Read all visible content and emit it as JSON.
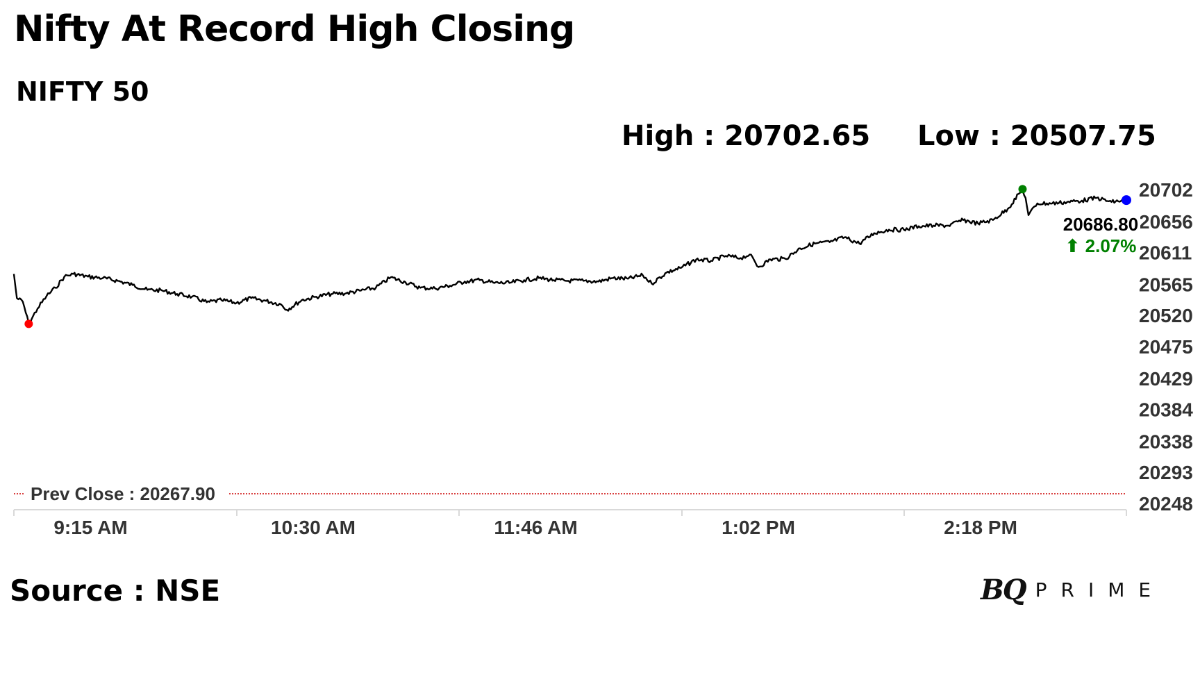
{
  "header": {
    "title": "Nifty At Record High Closing",
    "subtitle": "NIFTY 50",
    "high_label": "High : 20702.65",
    "low_label": "Low : 20507.75"
  },
  "footer": {
    "source": "Source : NSE",
    "logo_mark": "BQ",
    "logo_word": "PRIME"
  },
  "colors": {
    "line": "#000000",
    "high_marker": "#008000",
    "low_marker": "#ff0000",
    "last_marker": "#0000ff",
    "change_up": "#008000",
    "prev_close_line": "#cc0000",
    "axis_text": "#333333"
  },
  "chart_data": {
    "type": "line",
    "title": "NIFTY 50",
    "y_ticks": [
      20248,
      20293,
      20338,
      20384,
      20429,
      20475,
      20520,
      20565,
      20611,
      20656,
      20702
    ],
    "ylim": [
      20248,
      20702
    ],
    "x_ticks": [
      "9:15 AM",
      "10:30 AM",
      "11:46 AM",
      "1:02 PM",
      "2:18 PM"
    ],
    "y_axis_position": "right",
    "grid": false,
    "prev_close": {
      "label": "Prev Close : 20267.90",
      "value": 20267.9
    },
    "last_value_label": "20686.80",
    "change_label": "2.07%",
    "change_arrow": "⬆",
    "high": {
      "time": "2:55 PM",
      "value": 20702.65
    },
    "low": {
      "time": "9:20 AM",
      "value": 20507.75
    },
    "last": {
      "time": "3:30 PM",
      "value": 20686.8
    },
    "series": [
      {
        "points": [
          [
            "9:15 AM",
            20580
          ],
          [
            "9:16 AM",
            20545
          ],
          [
            "9:18 AM",
            20540
          ],
          [
            "9:20 AM",
            20508
          ],
          [
            "9:23 AM",
            20530
          ],
          [
            "9:26 AM",
            20548
          ],
          [
            "9:29 AM",
            20560
          ],
          [
            "9:32 AM",
            20576
          ],
          [
            "9:35 AM",
            20580
          ],
          [
            "9:40 AM",
            20576
          ],
          [
            "9:45 AM",
            20574
          ],
          [
            "9:50 AM",
            20570
          ],
          [
            "9:55 AM",
            20564
          ],
          [
            "10:00 AM",
            20557
          ],
          [
            "10:05 AM",
            20556
          ],
          [
            "10:10 AM",
            20551
          ],
          [
            "10:15 AM",
            20547
          ],
          [
            "10:20 AM",
            20539
          ],
          [
            "10:25 AM",
            20542
          ],
          [
            "10:30 AM",
            20538
          ],
          [
            "10:35 AM",
            20545
          ],
          [
            "10:40 AM",
            20541
          ],
          [
            "10:45 AM",
            20536
          ],
          [
            "10:47 AM",
            20528
          ],
          [
            "10:52 AM",
            20542
          ],
          [
            "10:57 AM",
            20547
          ],
          [
            "11:02 AM",
            20551
          ],
          [
            "11:07 AM",
            20552
          ],
          [
            "11:12 AM",
            20556
          ],
          [
            "11:17 AM",
            20560
          ],
          [
            "11:22 AM",
            20575
          ],
          [
            "11:27 AM",
            20568
          ],
          [
            "11:32 AM",
            20560
          ],
          [
            "11:37 AM",
            20559
          ],
          [
            "11:42 AM",
            20563
          ],
          [
            "11:47 AM",
            20569
          ],
          [
            "11:52 AM",
            20571
          ],
          [
            "11:57 AM",
            20567
          ],
          [
            "12:02 PM",
            20567
          ],
          [
            "12:07 PM",
            20571
          ],
          [
            "12:12 PM",
            20574
          ],
          [
            "12:17 PM",
            20571
          ],
          [
            "12:22 PM",
            20570
          ],
          [
            "12:27 PM",
            20570
          ],
          [
            "12:32 PM",
            20569
          ],
          [
            "12:37 PM",
            20574
          ],
          [
            "12:42 PM",
            20573
          ],
          [
            "12:47 PM",
            20578
          ],
          [
            "12:50 PM",
            20566
          ],
          [
            "12:55 PM",
            20582
          ],
          [
            "1:00 PM",
            20589
          ],
          [
            "1:05 PM",
            20601
          ],
          [
            "1:10 PM",
            20599
          ],
          [
            "1:15 PM",
            20606
          ],
          [
            "1:20 PM",
            20603
          ],
          [
            "1:23 PM",
            20608
          ],
          [
            "1:26 PM",
            20590
          ],
          [
            "1:30 PM",
            20601
          ],
          [
            "1:35 PM",
            20602
          ],
          [
            "1:40 PM",
            20617
          ],
          [
            "1:45 PM",
            20624
          ],
          [
            "1:50 PM",
            20626
          ],
          [
            "1:55 PM",
            20633
          ],
          [
            "2:00 PM",
            20624
          ],
          [
            "2:05 PM",
            20639
          ],
          [
            "2:10 PM",
            20644
          ],
          [
            "2:15 PM",
            20644
          ],
          [
            "2:20 PM",
            20649
          ],
          [
            "2:25 PM",
            20650
          ],
          [
            "2:30 PM",
            20650
          ],
          [
            "2:35 PM",
            20658
          ],
          [
            "2:40 PM",
            20653
          ],
          [
            "2:45 PM",
            20658
          ],
          [
            "2:50 PM",
            20674
          ],
          [
            "2:55 PM",
            20702.65
          ],
          [
            "2:56 PM",
            20690
          ],
          [
            "2:57 PM",
            20665
          ],
          [
            "3:00 PM",
            20682
          ],
          [
            "3:05 PM",
            20682
          ],
          [
            "3:10 PM",
            20684
          ],
          [
            "3:15 PM",
            20686
          ],
          [
            "3:20 PM",
            20690
          ],
          [
            "3:25 PM",
            20684
          ],
          [
            "3:30 PM",
            20686.8
          ]
        ]
      }
    ]
  }
}
